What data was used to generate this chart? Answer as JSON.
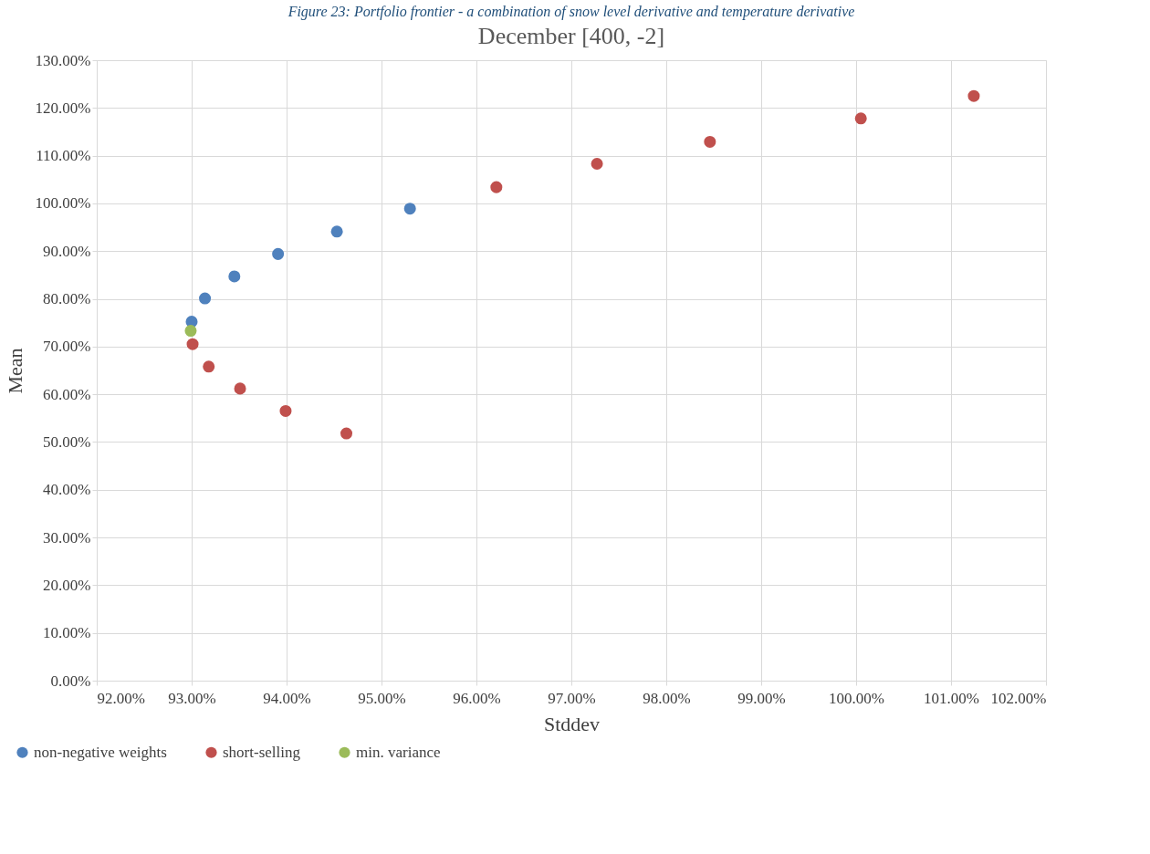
{
  "chart_data": {
    "type": "scatter",
    "title": "December [400, -2]",
    "xlabel": "Stddev",
    "ylabel": "Mean",
    "annotations": [
      "Figure 23: Portfolio frontier - a combination of snow level derivative and temperature derivative"
    ],
    "series": [
      {
        "name": "non-negative weights",
        "color": "#4f81bd",
        "x": [
          93.0,
          93.14,
          93.45,
          93.91,
          94.53,
          95.3
        ],
        "values": [
          75.2,
          80.1,
          84.7,
          89.4,
          94.1,
          98.9
        ]
      },
      {
        "name": "short-selling",
        "color": "#c0504d",
        "x": [
          93.01,
          93.18,
          93.51,
          93.99,
          94.63,
          96.21,
          97.27,
          98.46,
          100.05,
          101.24
        ],
        "values": [
          70.5,
          65.8,
          61.2,
          56.5,
          51.8,
          103.4,
          108.3,
          112.9,
          117.8,
          122.5
        ]
      },
      {
        "name": "min. variance",
        "color": "#9bbb59",
        "x": [
          92.99
        ],
        "values": [
          73.3
        ]
      }
    ],
    "xlim": [
      92,
      102
    ],
    "ylim": [
      0,
      130
    ],
    "xticks": [
      {
        "value": 92,
        "label": "92.00%"
      },
      {
        "value": 93,
        "label": "93.00%"
      },
      {
        "value": 94,
        "label": "94.00%"
      },
      {
        "value": 95,
        "label": "95.00%"
      },
      {
        "value": 96,
        "label": "96.00%"
      },
      {
        "value": 97,
        "label": "97.00%"
      },
      {
        "value": 98,
        "label": "98.00%"
      },
      {
        "value": 99,
        "label": "99.00%"
      },
      {
        "value": 100,
        "label": "100.00%"
      },
      {
        "value": 101,
        "label": "101.00%"
      },
      {
        "value": 102,
        "label": "102.00%"
      }
    ],
    "yticks": [
      {
        "value": 0,
        "label": "0.00%"
      },
      {
        "value": 10,
        "label": "10.00%"
      },
      {
        "value": 20,
        "label": "20.00%"
      },
      {
        "value": 30,
        "label": "30.00%"
      },
      {
        "value": 40,
        "label": "40.00%"
      },
      {
        "value": 50,
        "label": "50.00%"
      },
      {
        "value": 60,
        "label": "60.00%"
      },
      {
        "value": 70,
        "label": "70.00%"
      },
      {
        "value": 80,
        "label": "80.00%"
      },
      {
        "value": 90,
        "label": "90.00%"
      },
      {
        "value": 100,
        "label": "100.00%"
      },
      {
        "value": 110,
        "label": "110.00%"
      },
      {
        "value": 120,
        "label": "120.00%"
      },
      {
        "value": 130,
        "label": "130.00%"
      }
    ],
    "grid": true,
    "legend": "bottom left",
    "marker": "circle"
  }
}
